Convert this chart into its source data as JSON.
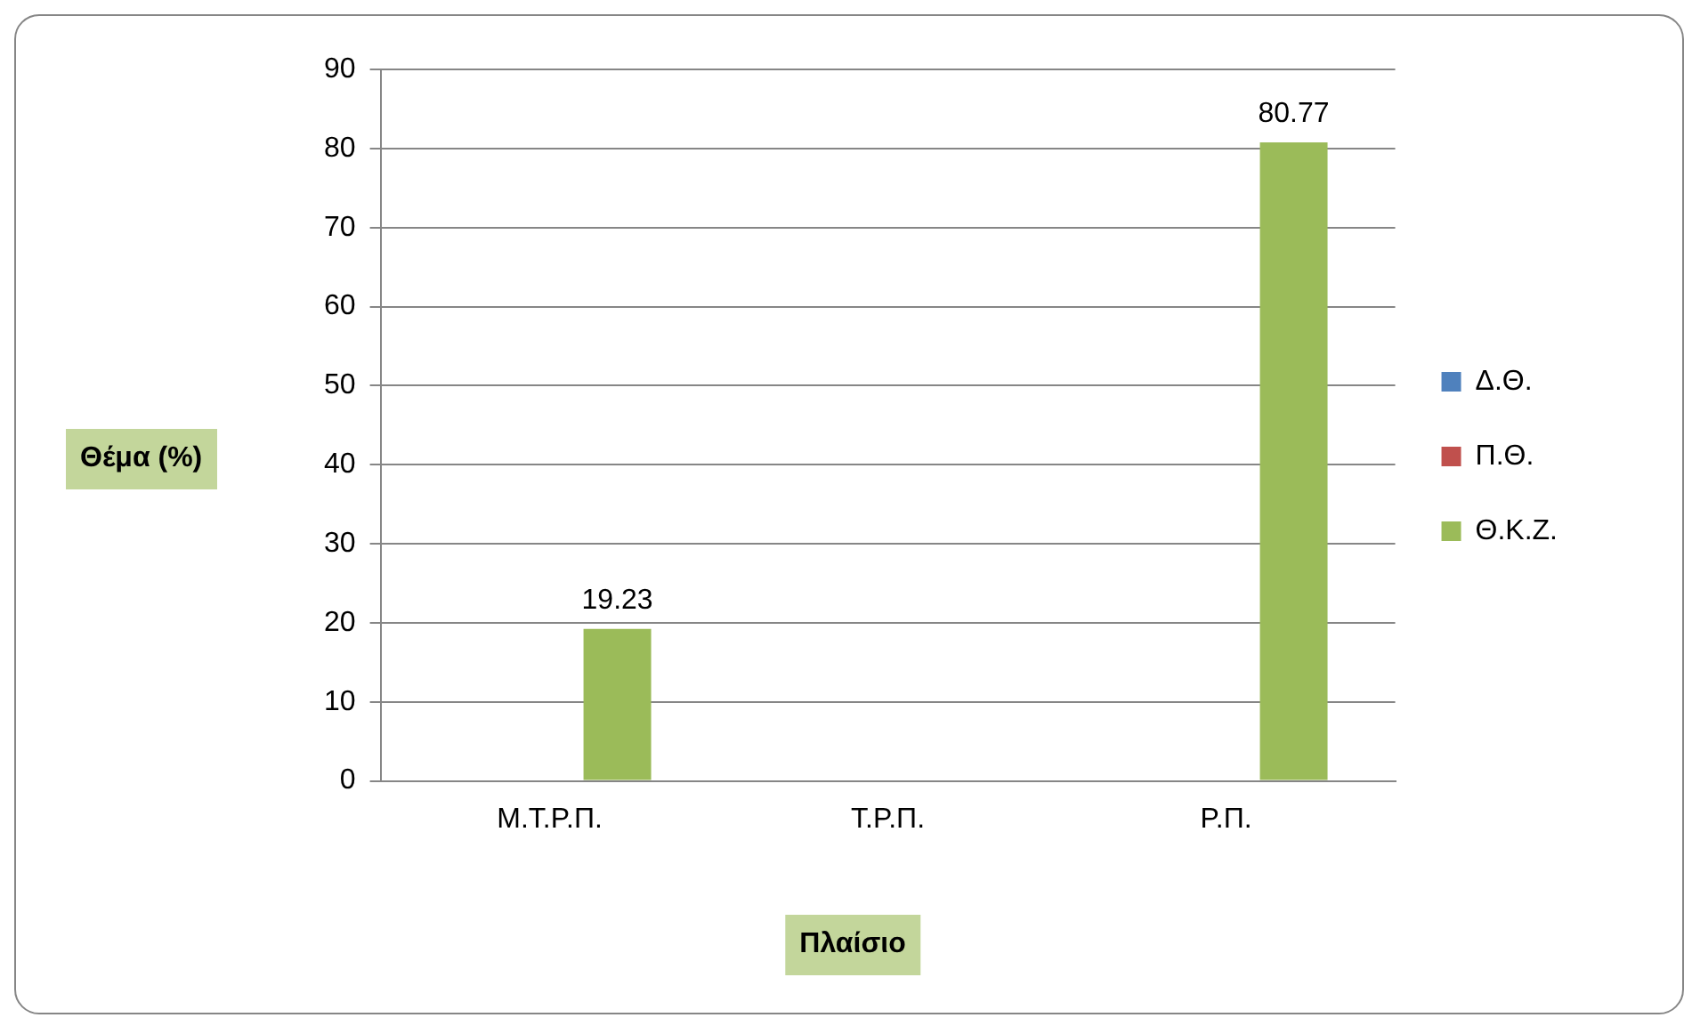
{
  "chart_data": {
    "type": "bar",
    "xlabel": "Πλαίσιο",
    "ylabel": "Θέμα (%)",
    "categories": [
      "Μ.Τ.Ρ.Π.",
      "Τ.Ρ.Π.",
      "Ρ.Π."
    ],
    "series": [
      {
        "name": "Δ.Θ.",
        "color": "#4f81bd",
        "values": [
          0,
          0,
          0
        ]
      },
      {
        "name": "Π.Θ.",
        "color": "#c0504d",
        "values": [
          0,
          0,
          0
        ]
      },
      {
        "name": "Θ.Κ.Ζ.",
        "color": "#9bbb59",
        "values": [
          19.23,
          0,
          80.77
        ],
        "value_labels": [
          "19.23",
          null,
          "80.77"
        ]
      }
    ],
    "ylim": [
      0,
      90
    ],
    "yticks": [
      0,
      10,
      20,
      30,
      40,
      50,
      60,
      70,
      80,
      90
    ],
    "grid": "y",
    "legend": "right"
  }
}
